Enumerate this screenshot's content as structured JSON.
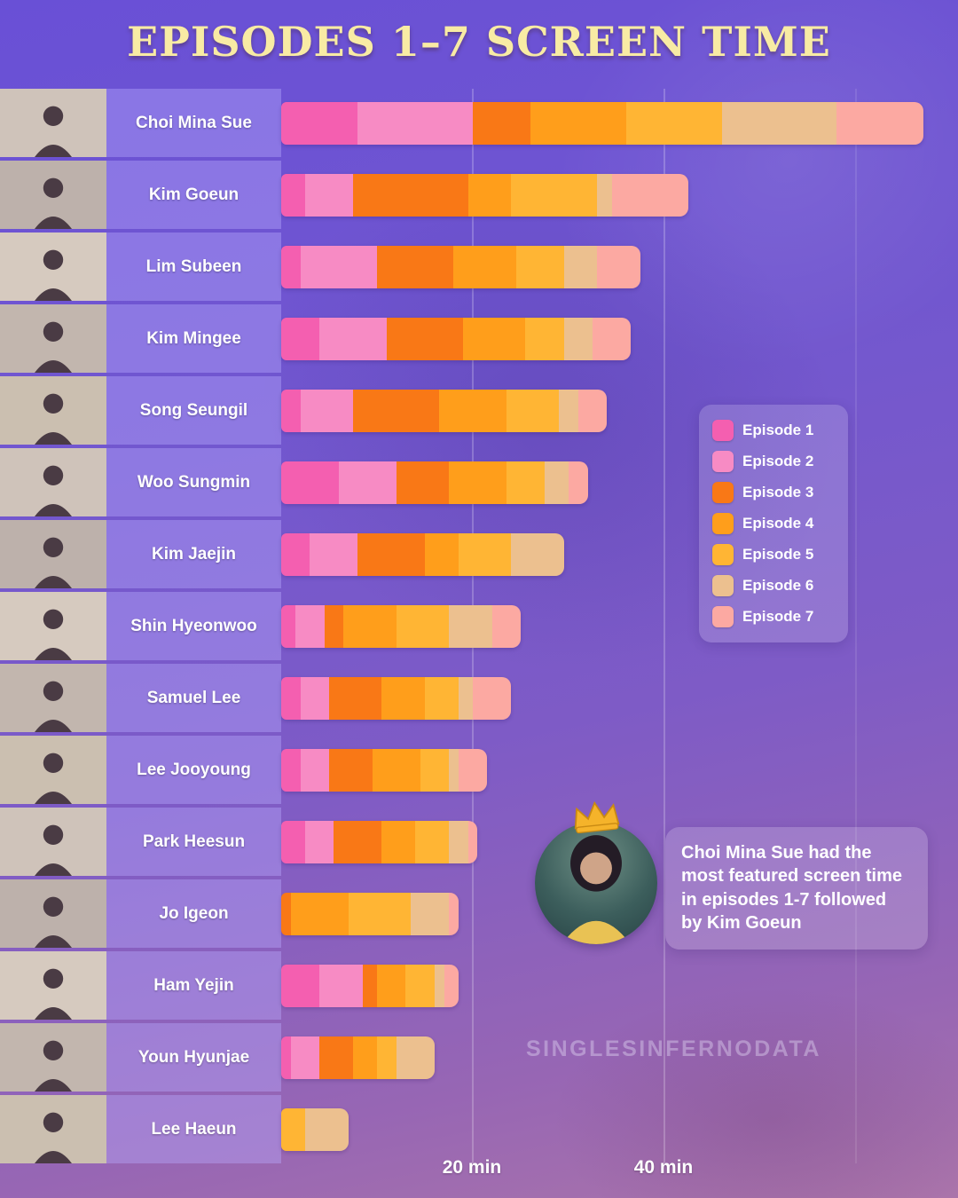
{
  "title": "EPISODES 1–7 SCREEN TIME",
  "watermark": "SINGLESINFERNODATA",
  "annotation": {
    "text": "Choi Mina Sue had the most featured screen time in episodes 1-7 followed by Kim Goeun",
    "crown_icon": "crown",
    "avatar_person": "Choi Mina Sue"
  },
  "chart_data": {
    "type": "bar",
    "orientation": "horizontal",
    "stacked": true,
    "unit": "minutes",
    "title": "EPISODES 1–7 SCREEN TIME",
    "xlabel": "",
    "ylabel": "",
    "xlim": [
      0,
      67
    ],
    "grid": true,
    "legend_position": "right",
    "x_tick_labels": [
      "20 min",
      "40 min"
    ],
    "x_tick_values": [
      20,
      40
    ],
    "categories": [
      "Choi Mina Sue",
      "Kim Goeun",
      "Lim Subeen",
      "Kim Mingee",
      "Song Seungil",
      "Woo Sungmin",
      "Kim Jaejin",
      "Shin Hyeonwoo",
      "Samuel Lee",
      "Lee Jooyoung",
      "Park Heesun",
      "Jo Igeon",
      "Ham Yejin",
      "Youn Hyunjae",
      "Lee Haeun"
    ],
    "series": [
      {
        "name": "Episode 1",
        "color": "#F45FB0",
        "values": [
          8,
          2.5,
          2,
          4,
          2,
          6,
          3,
          1.5,
          2,
          2,
          2.5,
          0,
          4,
          1,
          0
        ]
      },
      {
        "name": "Episode 2",
        "color": "#F78BC4",
        "values": [
          12,
          5,
          8,
          7,
          5.5,
          6,
          5,
          3,
          3,
          3,
          3,
          0,
          4.5,
          3,
          0
        ]
      },
      {
        "name": "Episode 3",
        "color": "#F97816",
        "values": [
          6,
          12,
          8,
          8,
          9,
          5.5,
          7,
          2,
          5.5,
          4.5,
          5,
          1,
          1.5,
          3.5,
          0
        ]
      },
      {
        "name": "Episode 4",
        "color": "#FF9E1B",
        "values": [
          10,
          4.5,
          6.5,
          6.5,
          7,
          6,
          3.5,
          5.5,
          4.5,
          5,
          3.5,
          6,
          3,
          2.5,
          0
        ]
      },
      {
        "name": "Episode 5",
        "color": "#FFB534",
        "values": [
          10,
          9,
          5,
          4,
          5.5,
          4,
          5.5,
          5.5,
          3.5,
          3,
          3.5,
          6.5,
          3,
          2,
          2.5
        ]
      },
      {
        "name": "Episode 6",
        "color": "#ECC08F",
        "values": [
          12,
          1.5,
          3.5,
          3,
          2,
          2.5,
          5.5,
          4.5,
          1.5,
          1,
          2,
          4,
          1,
          4,
          4.5
        ]
      },
      {
        "name": "Episode 7",
        "color": "#FCA9A2",
        "values": [
          9,
          8,
          4.5,
          4,
          3,
          2,
          0,
          3,
          4,
          3,
          1,
          1,
          1.5,
          0,
          0
        ]
      }
    ],
    "totals_minutes": [
      67,
      42.5,
      37.5,
      36.5,
      34,
      32,
      29.5,
      25,
      24,
      21.5,
      20.5,
      18.5,
      18.5,
      16,
      7
    ]
  },
  "colors": {
    "background_top": "#6950d6",
    "background_bottom": "#aa74aa",
    "title_text": "#f8eba4",
    "row_band": "rgba(186,173,255,0.40)",
    "label_text": "#ffffff"
  }
}
